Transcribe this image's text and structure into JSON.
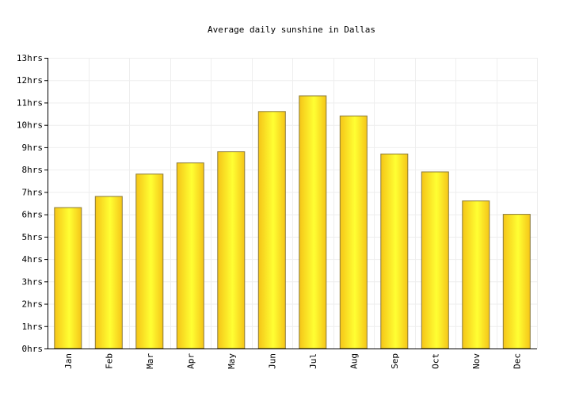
{
  "chart_data": {
    "type": "bar",
    "title": "Average daily sunshine in Dallas",
    "xlabel": "",
    "ylabel": "",
    "categories": [
      "Jan",
      "Feb",
      "Mar",
      "Apr",
      "May",
      "Jun",
      "Jul",
      "Aug",
      "Sep",
      "Oct",
      "Nov",
      "Dec"
    ],
    "values": [
      6.3,
      6.8,
      7.8,
      8.3,
      8.8,
      10.6,
      11.3,
      10.4,
      8.7,
      7.9,
      6.6,
      6.0
    ],
    "ylim": [
      0,
      13
    ],
    "yticks": [
      0,
      1,
      2,
      3,
      4,
      5,
      6,
      7,
      8,
      9,
      10,
      11,
      12,
      13
    ],
    "ytick_labels": [
      "0hrs",
      "1hrs",
      "2hrs",
      "3hrs",
      "4hrs",
      "5hrs",
      "6hrs",
      "7hrs",
      "8hrs",
      "9hrs",
      "10hrs",
      "11hrs",
      "12hrs",
      "13hrs"
    ],
    "grid": true,
    "legend": "none",
    "colors": {
      "bar_gradient_edge": "#f5c518",
      "bar_gradient_center": "#ffff33",
      "bar_stroke": "#8a7a3a",
      "grid": "#eeeeee",
      "axis": "#000000"
    }
  }
}
